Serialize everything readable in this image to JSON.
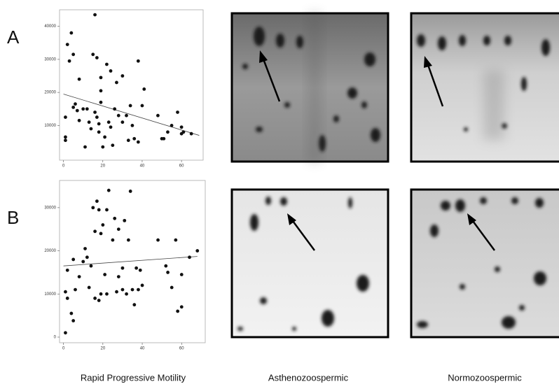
{
  "panel_labels": [
    "A",
    "B"
  ],
  "column_labels": [
    "Rapid Progressive Motility",
    "Asthenozoospermic",
    "Normozoospermic"
  ],
  "chart_data": [
    {
      "type": "scatter",
      "xlim": [
        -2,
        71
      ],
      "ylim": [
        -500,
        45000
      ],
      "xticks": [
        0,
        20,
        40,
        60
      ],
      "yticks": [
        10000,
        20000,
        30000,
        40000
      ],
      "color": "#111111",
      "x": [
        1,
        1,
        1,
        2,
        3,
        4,
        5,
        5,
        6,
        7,
        8,
        8,
        10,
        11,
        12,
        13,
        14,
        15,
        16,
        16,
        17,
        17,
        18,
        18,
        19,
        19,
        19,
        20,
        21,
        22,
        23,
        24,
        24,
        25,
        26,
        27,
        28,
        30,
        30,
        32,
        33,
        34,
        35,
        36,
        38,
        38,
        40,
        41,
        48,
        50,
        51,
        53,
        55,
        58,
        60,
        60,
        61,
        65
      ],
      "y": [
        12500,
        6500,
        5500,
        34500,
        29500,
        38000,
        31500,
        15500,
        16500,
        14500,
        11500,
        24000,
        15000,
        3500,
        15000,
        11000,
        9000,
        31500,
        14000,
        43500,
        12500,
        30500,
        8000,
        10500,
        24500,
        20500,
        17000,
        3500,
        6500,
        28500,
        11000,
        9500,
        26500,
        4000,
        15000,
        23000,
        13000,
        25000,
        11000,
        13000,
        5500,
        16000,
        10000,
        6000,
        29500,
        5000,
        16000,
        21000,
        13000,
        6000,
        6000,
        8000,
        10000,
        14000,
        9500,
        7500,
        8000,
        7500
      ],
      "fit": {
        "x": [
          0,
          69
        ],
        "y": [
          19500,
          7000
        ]
      }
    },
    {
      "type": "scatter",
      "xlim": [
        -2,
        72
      ],
      "ylim": [
        -1300,
        36300
      ],
      "xticks": [
        0,
        20,
        40,
        60
      ],
      "yticks": [
        0,
        10000,
        20000,
        30000
      ],
      "color": "#111111",
      "x": [
        1,
        1,
        2,
        2,
        4,
        5,
        5,
        6,
        8,
        10,
        11,
        12,
        13,
        14,
        15,
        16,
        16,
        17,
        18,
        18,
        19,
        19,
        20,
        21,
        22,
        22,
        23,
        25,
        26,
        27,
        28,
        28,
        30,
        30,
        31,
        32,
        33,
        34,
        35,
        36,
        37,
        38,
        39,
        40,
        48,
        52,
        53,
        55,
        57,
        58,
        60,
        60,
        64,
        68
      ],
      "y": [
        1000,
        10500,
        9000,
        15500,
        5500,
        3800,
        18000,
        11000,
        14000,
        17500,
        20500,
        18500,
        11500,
        16500,
        30000,
        24500,
        9000,
        31500,
        8500,
        29500,
        24000,
        10000,
        26000,
        14500,
        10000,
        29500,
        34000,
        22500,
        27500,
        10500,
        14000,
        25000,
        16000,
        11000,
        27000,
        10000,
        22500,
        33800,
        11000,
        7500,
        16000,
        11000,
        15500,
        12000,
        22500,
        16500,
        15000,
        11500,
        22500,
        6000,
        7000,
        14500,
        18500,
        20000
      ],
      "fit": {
        "x": [
          0,
          68
        ],
        "y": [
          16500,
          18700
        ]
      }
    }
  ]
}
